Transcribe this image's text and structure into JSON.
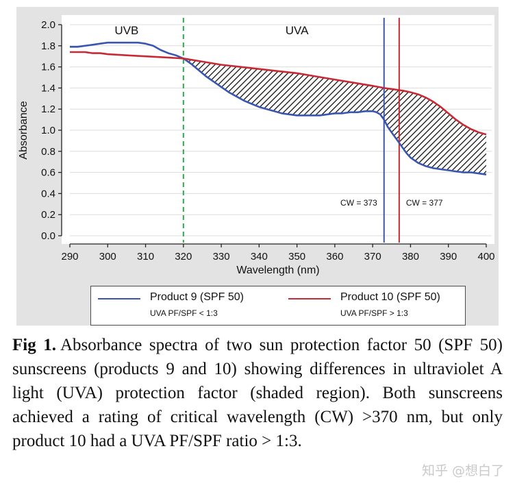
{
  "chart_data": {
    "type": "line",
    "xlabel": "Wavelength (nm)",
    "ylabel": "Absorbance",
    "xlim": [
      290,
      400
    ],
    "ylim": [
      0.0,
      2.0
    ],
    "x_ticks": [
      290,
      300,
      310,
      320,
      330,
      340,
      350,
      360,
      370,
      380,
      390,
      400
    ],
    "y_ticks": [
      0.0,
      0.2,
      0.4,
      0.6,
      0.8,
      1.0,
      1.2,
      1.4,
      1.6,
      1.8,
      2.0
    ],
    "y_tick_labels": [
      "0.0",
      "0.2",
      "0.4",
      "0.6",
      "0.8",
      "1.0",
      "1.2",
      "1.4",
      "1.6",
      "1.8",
      "2.0"
    ],
    "grid": "y-major",
    "region_labels": [
      {
        "text": "UVB",
        "x": 305,
        "y": 1.97
      },
      {
        "text": "UVA",
        "x": 350,
        "y": 1.97
      }
    ],
    "divider": {
      "x": 320,
      "style": "dashed",
      "color": "#2eaa4a"
    },
    "critical_wavelengths": [
      {
        "x": 373,
        "label": "CW = 373",
        "color": "#3a55b0",
        "label_side": "left"
      },
      {
        "x": 377,
        "label": "CW = 377",
        "color": "#c82a35",
        "label_side": "right"
      }
    ],
    "shaded_region": {
      "between": [
        "Product 9 (SPF 50)",
        "Product 10 (SPF 50)"
      ],
      "x_from": 320,
      "x_to": 400,
      "pattern": "diagonal-hatch"
    },
    "series": [
      {
        "name": "Product 9 (SPF 50)",
        "sub_label": "UVA PF/SPF < 1:3",
        "color": "#3a55b0",
        "x": [
          290,
          292,
          294,
          296,
          298,
          300,
          302,
          304,
          306,
          308,
          310,
          312,
          314,
          316,
          318,
          320,
          322,
          324,
          326,
          328,
          330,
          332,
          334,
          336,
          338,
          340,
          342,
          344,
          346,
          348,
          350,
          352,
          354,
          356,
          358,
          360,
          362,
          364,
          366,
          368,
          370,
          371,
          372,
          373,
          374,
          375,
          376,
          377,
          378,
          379,
          380,
          382,
          384,
          386,
          388,
          390,
          392,
          394,
          396,
          398,
          400
        ],
        "y": [
          1.79,
          1.79,
          1.8,
          1.81,
          1.82,
          1.83,
          1.83,
          1.83,
          1.83,
          1.83,
          1.82,
          1.8,
          1.76,
          1.73,
          1.71,
          1.68,
          1.63,
          1.57,
          1.51,
          1.46,
          1.41,
          1.36,
          1.32,
          1.28,
          1.25,
          1.22,
          1.2,
          1.18,
          1.16,
          1.15,
          1.14,
          1.14,
          1.14,
          1.14,
          1.15,
          1.16,
          1.16,
          1.17,
          1.17,
          1.18,
          1.18,
          1.17,
          1.15,
          1.1,
          1.03,
          0.98,
          0.93,
          0.88,
          0.83,
          0.78,
          0.74,
          0.69,
          0.66,
          0.64,
          0.63,
          0.62,
          0.61,
          0.6,
          0.6,
          0.59,
          0.58
        ]
      },
      {
        "name": "Product 10 (SPF 50)",
        "sub_label": "UVA PF/SPF > 1:3",
        "color": "#c82a35",
        "x": [
          290,
          292,
          294,
          296,
          298,
          300,
          305,
          310,
          315,
          320,
          325,
          330,
          335,
          340,
          345,
          350,
          355,
          360,
          365,
          370,
          373,
          375,
          377,
          378,
          380,
          382,
          384,
          386,
          388,
          390,
          392,
          394,
          396,
          398,
          400
        ],
        "y": [
          1.74,
          1.74,
          1.74,
          1.73,
          1.73,
          1.72,
          1.71,
          1.7,
          1.69,
          1.68,
          1.65,
          1.62,
          1.6,
          1.58,
          1.56,
          1.54,
          1.51,
          1.48,
          1.45,
          1.42,
          1.4,
          1.39,
          1.38,
          1.375,
          1.36,
          1.34,
          1.31,
          1.27,
          1.22,
          1.16,
          1.1,
          1.05,
          1.01,
          0.98,
          0.96
        ]
      }
    ]
  },
  "caption": {
    "label": "Fig 1.",
    "text": "Absorbance spectra of two sun protection factor 50 (SPF 50) sunscreens (products 9 and 10) showing differences in ultraviolet A light (UVA) protection factor (shaded region). Both sunscreens achieved a rating of critical wavelength (CW) >370 nm, but only product 10 had a UVA PF/SPF ratio > 1:3."
  },
  "watermark": "知乎 @想白了"
}
